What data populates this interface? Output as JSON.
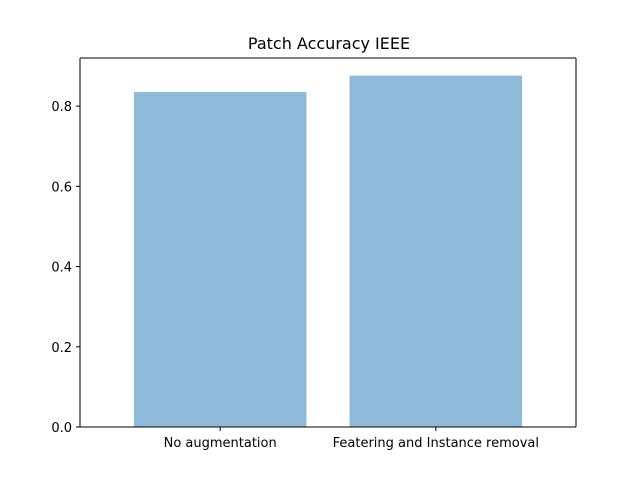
{
  "chart_data": {
    "type": "bar",
    "title": "Patch Accuracy IEEE",
    "xlabel": "",
    "ylabel": "",
    "categories": [
      "No augmentation",
      "Featering and Instance removal"
    ],
    "values": [
      0.835,
      0.876
    ],
    "ylim": [
      0,
      0.92
    ],
    "yticks": [
      0.0,
      0.2,
      0.4,
      0.6,
      0.8
    ],
    "ytick_labels": [
      "0.0",
      "0.2",
      "0.4",
      "0.6",
      "0.8"
    ],
    "bar_color": "#8fb9d9",
    "grid": false,
    "legend": "none"
  }
}
